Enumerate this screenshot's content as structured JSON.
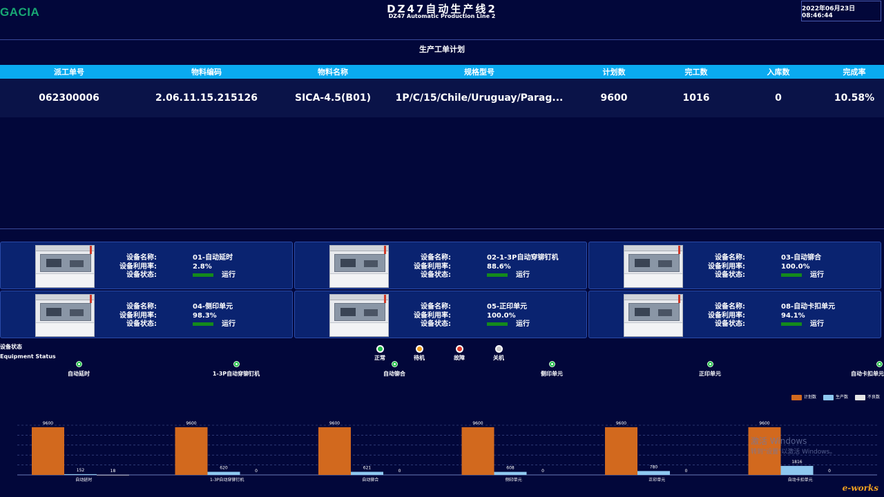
{
  "header": {
    "logo": "GACIA",
    "title": "DZ47自动生产线2",
    "subtitle": "DZ47 Automatic Production Line 2",
    "datetime": "2022年06月23日 08:46:44"
  },
  "plan": {
    "title": "生产工单计划",
    "columns": [
      "派工单号",
      "物料编码",
      "物料名称",
      "规格型号",
      "计划数",
      "完工数",
      "入库数",
      "完成率"
    ],
    "row": [
      "062300006",
      "2.06.11.15.215126",
      "SICA-4.5(B01)",
      "1P/C/15/Chile/Uruguay/Parag...",
      "9600",
      "1016",
      "0",
      "10.58%"
    ]
  },
  "equipment": {
    "label_name": "设备名称:",
    "label_util": "设备利用率:",
    "label_status": "设备状态:",
    "items": [
      {
        "name": "01-自动延时",
        "util": "2.8%",
        "status": "运行"
      },
      {
        "name": "02-1-3P自动穿铆钉机",
        "util": "88.6%",
        "status": "运行"
      },
      {
        "name": "03-自动铆合",
        "util": "100.0%",
        "status": "运行"
      },
      {
        "name": "04-侧印单元",
        "util": "98.3%",
        "status": "运行"
      },
      {
        "name": "05-正印单元",
        "util": "100.0%",
        "status": "运行"
      },
      {
        "name": "08-自动卡扣单元",
        "util": "94.1%",
        "status": "运行"
      }
    ]
  },
  "status_section": {
    "title_cn": "设备状态",
    "title_en": "Equipment Status",
    "legend": [
      {
        "label": "正常",
        "color": "#22c04a"
      },
      {
        "label": "待机",
        "color": "#f0a020"
      },
      {
        "label": "故障",
        "color": "#e03a2a"
      },
      {
        "label": "关机",
        "color": "#c8c8c8"
      }
    ],
    "items": [
      "自动延时",
      "1-3P自动穿铆钉机",
      "自动铆合",
      "侧印单元",
      "正印单元",
      "自动卡扣单元"
    ]
  },
  "chart_data": {
    "type": "bar",
    "categories": [
      "自动延时",
      "1-3P自动穿铆钉机",
      "自动铆合",
      "侧印单元",
      "正印单元",
      "自动卡扣单元"
    ],
    "series": [
      {
        "name": "计划数",
        "color": "#d2691e",
        "values": [
          9600,
          9600,
          9600,
          9600,
          9600,
          9600
        ]
      },
      {
        "name": "生产数",
        "color": "#8ec8f0",
        "values": [
          152,
          620,
          621,
          608,
          780,
          1816
        ]
      },
      {
        "name": "不良数",
        "color": "#e6e6e6",
        "values": [
          18,
          0,
          0,
          0,
          0,
          0
        ]
      }
    ],
    "ylim": [
      0,
      10000
    ],
    "grid": true,
    "legend_position": "top-right"
  },
  "watermark": {
    "line1": "激活 Windows",
    "line2": "转到\"设置\"以激活 Windows。"
  },
  "brand": "e-works"
}
